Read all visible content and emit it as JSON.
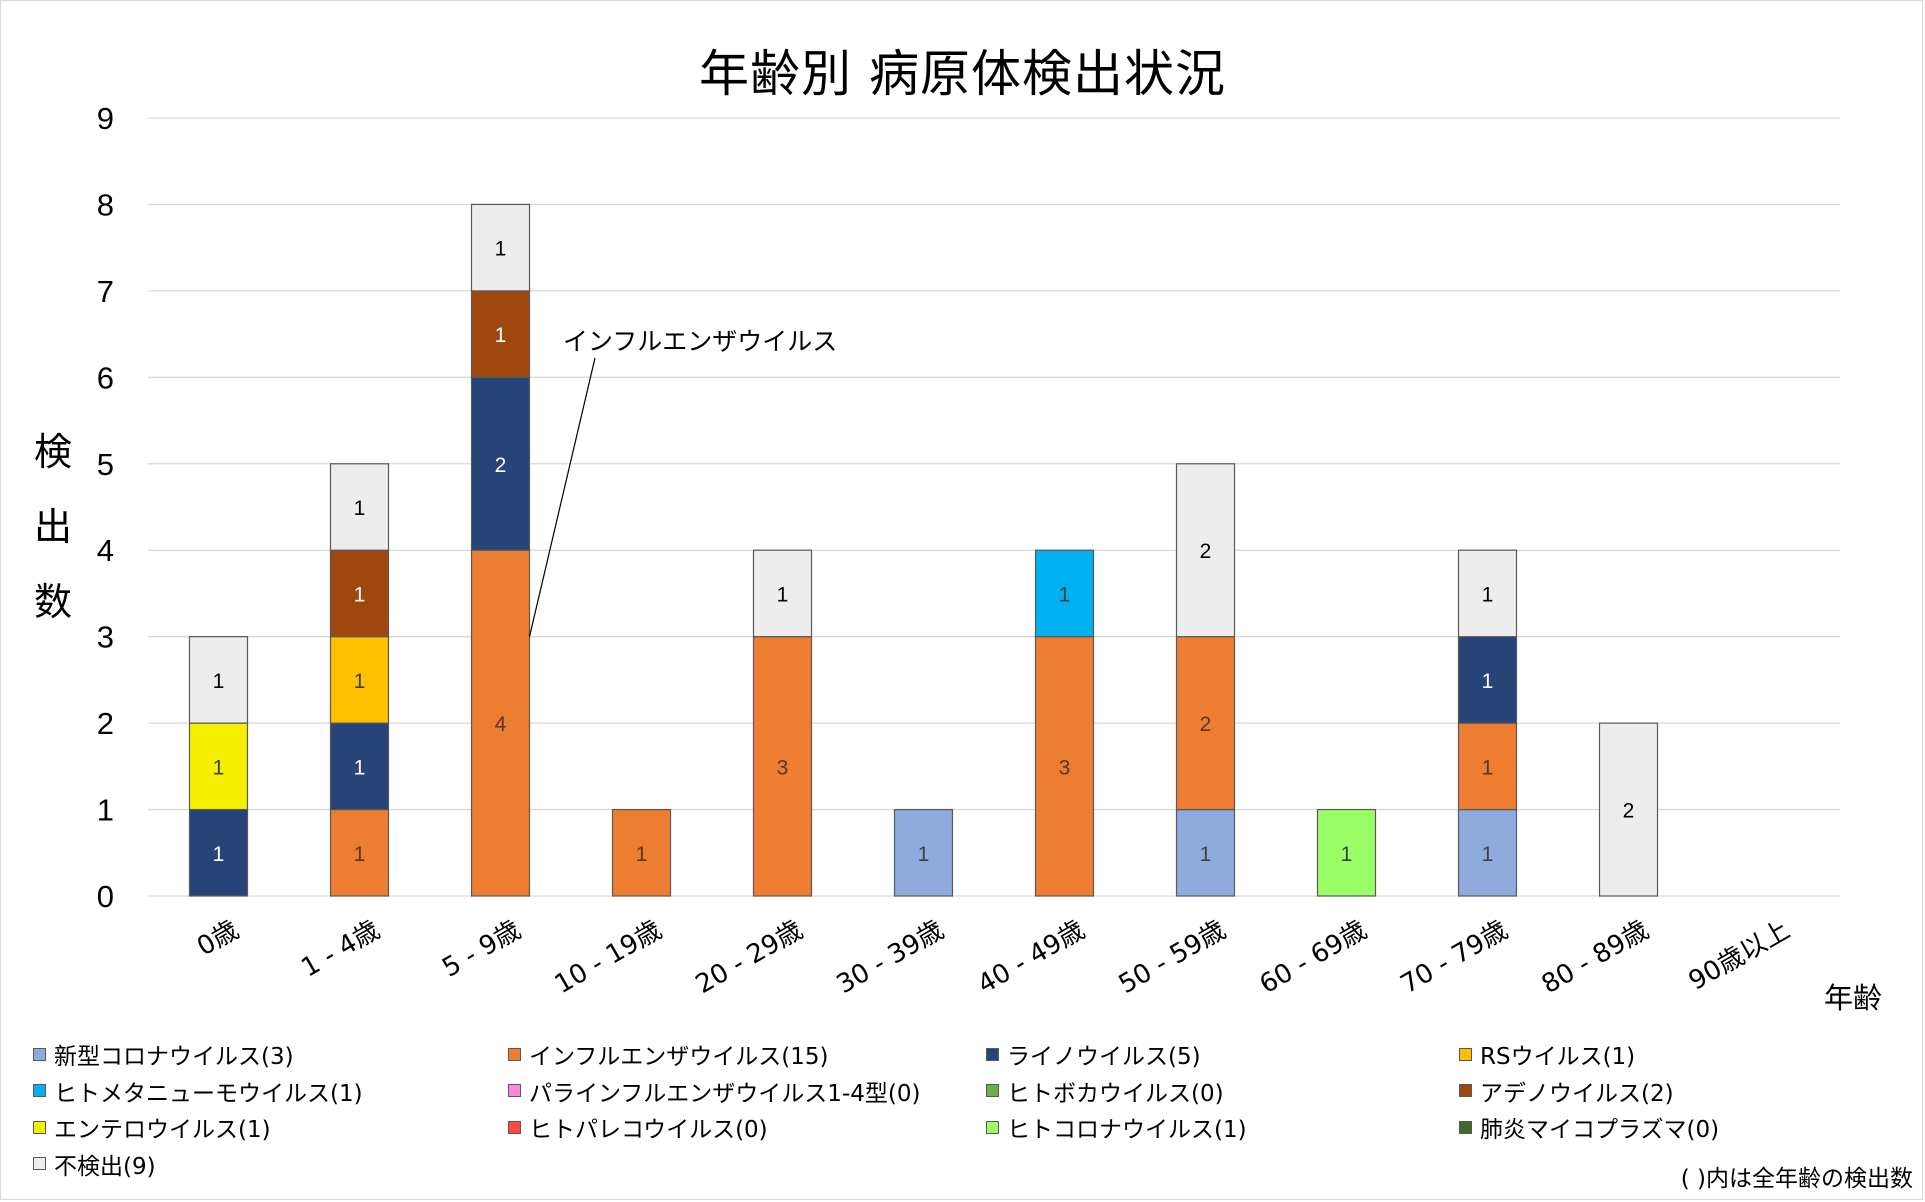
{
  "chart_data": {
    "type": "bar",
    "stacked": true,
    "title": "年齢別 病原体検出状況",
    "xlabel": "年齢",
    "ylabel": "検出数",
    "ylim": [
      0,
      9
    ],
    "yticks": [
      0,
      1,
      2,
      3,
      4,
      5,
      6,
      7,
      8,
      9
    ],
    "grid": true,
    "legend_position": "bottom",
    "categories": [
      "0歳",
      "1 - 4歳",
      "5 - 9歳",
      "10 - 19歳",
      "20 - 29歳",
      "30 - 39歳",
      "40 - 49歳",
      "50 - 59歳",
      "60 - 69歳",
      "70 - 79歳",
      "80 - 89歳",
      "90歳以上"
    ],
    "series": [
      {
        "name": "新型コロナウイルス",
        "total": 3,
        "color": "#8FAADC",
        "label_color": "#404040",
        "values": [
          0,
          0,
          0,
          0,
          0,
          1,
          0,
          1,
          0,
          1,
          0,
          0
        ]
      },
      {
        "name": "インフルエンザウイルス",
        "total": 15,
        "color": "#ED7D31",
        "label_color": "#5A3520",
        "values": [
          0,
          1,
          4,
          1,
          3,
          0,
          3,
          2,
          0,
          1,
          0,
          0
        ]
      },
      {
        "name": "ライノウイルス",
        "total": 5,
        "color": "#264478",
        "label_color": "#FFFFFF",
        "values": [
          1,
          1,
          2,
          0,
          0,
          0,
          0,
          0,
          0,
          1,
          0,
          0
        ]
      },
      {
        "name": "RSウイルス",
        "total": 1,
        "color": "#FFC000",
        "label_color": "#404040",
        "values": [
          0,
          1,
          0,
          0,
          0,
          0,
          0,
          0,
          0,
          0,
          0,
          0
        ]
      },
      {
        "name": "ヒトメタニューモウイルス",
        "total": 1,
        "color": "#00B0F0",
        "label_color": "#404040",
        "values": [
          0,
          0,
          0,
          0,
          0,
          0,
          1,
          0,
          0,
          0,
          0,
          0
        ]
      },
      {
        "name": "パラインフルエンザウイルス1-4型",
        "total": 0,
        "color": "#FF88DD",
        "label_color": "#404040",
        "values": [
          0,
          0,
          0,
          0,
          0,
          0,
          0,
          0,
          0,
          0,
          0,
          0
        ]
      },
      {
        "name": "ヒトボカウイルス",
        "total": 0,
        "color": "#70AD47",
        "label_color": "#404040",
        "values": [
          0,
          0,
          0,
          0,
          0,
          0,
          0,
          0,
          0,
          0,
          0,
          0
        ]
      },
      {
        "name": "アデノウイルス",
        "total": 2,
        "color": "#9E480E",
        "label_color": "#FFFFFF",
        "values": [
          0,
          1,
          1,
          0,
          0,
          0,
          0,
          0,
          0,
          0,
          0,
          0
        ]
      },
      {
        "name": "エンテロウイルス",
        "total": 1,
        "color": "#F5F000",
        "label_color": "#404040",
        "values": [
          1,
          0,
          0,
          0,
          0,
          0,
          0,
          0,
          0,
          0,
          0,
          0
        ]
      },
      {
        "name": "ヒトパレコウイルス",
        "total": 0,
        "color": "#FF4747",
        "label_color": "#404040",
        "values": [
          0,
          0,
          0,
          0,
          0,
          0,
          0,
          0,
          0,
          0,
          0,
          0
        ]
      },
      {
        "name": "ヒトコロナウイルス",
        "total": 1,
        "color": "#99FF66",
        "label_color": "#404040",
        "values": [
          0,
          0,
          0,
          0,
          0,
          0,
          0,
          0,
          1,
          0,
          0,
          0
        ]
      },
      {
        "name": "肺炎マイコプラズマ",
        "total": 0,
        "color": "#43682B",
        "label_color": "#FFFFFF",
        "values": [
          0,
          0,
          0,
          0,
          0,
          0,
          0,
          0,
          0,
          0,
          0,
          0
        ]
      },
      {
        "name": "不検出",
        "total": 9,
        "color": "#EDEDED",
        "label_color": "#000000",
        "values": [
          1,
          1,
          1,
          0,
          1,
          0,
          0,
          2,
          0,
          1,
          2,
          0
        ]
      }
    ],
    "annotations": [
      {
        "text": "インフルエンザウイルス",
        "category": "5 - 9歳",
        "series": "インフルエンザウイルス"
      }
    ],
    "footnote": "( )内は全年齢の検出数"
  },
  "legend": {
    "order": [
      "新型コロナウイルス(3)",
      "インフルエンザウイルス(15)",
      "ライノウイルス(5)",
      "RSウイルス(1)",
      "ヒトメタニューモウイルス(1)",
      "パラインフルエンザウイルス1-4型(0)",
      "ヒトボカウイルス(0)",
      "アデノウイルス(2)",
      "エンテロウイルス(1)",
      "ヒトパレコウイルス(0)",
      "ヒトコロナウイルス(1)",
      "肺炎マイコプラズマ(0)",
      "不検出(9)"
    ]
  }
}
